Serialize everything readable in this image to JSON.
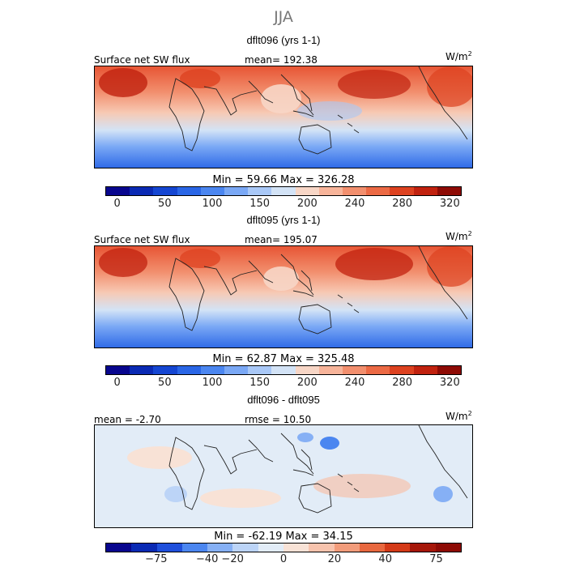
{
  "title": "JJA",
  "panels": [
    {
      "id": "dflt096",
      "title": "dflt096 (yrs 1-1)",
      "left_label": "Surface net SW flux",
      "center_label": "mean= 192.38",
      "units": "W/m",
      "units_sup": "2",
      "minmax": "Min =  59.66 Max = 326.28"
    },
    {
      "id": "dflt095",
      "title": "dflt095 (yrs 1-1)",
      "left_label": "Surface net SW flux",
      "center_label": "mean= 195.07",
      "units": "W/m",
      "units_sup": "2",
      "minmax": "Min =  62.87 Max = 325.48"
    },
    {
      "id": "diff",
      "title": "dflt096 - dflt095",
      "left_label": "mean =  -2.70",
      "center_label": "rmse =  10.50",
      "units": "W/m",
      "units_sup": "2",
      "minmax": "Min = -62.19 Max =  34.15"
    }
  ],
  "chart_data": [
    {
      "type": "heatmap",
      "title": "dflt096 (yrs 1-1)",
      "variable": "Surface net SW flux",
      "units": "W/m2",
      "mean": 192.38,
      "min": 59.66,
      "max": 326.28,
      "colorbar_ticks": [
        "0",
        "50",
        "100",
        "150",
        "200",
        "240",
        "280",
        "320"
      ]
    },
    {
      "type": "heatmap",
      "title": "dflt095 (yrs 1-1)",
      "variable": "Surface net SW flux",
      "units": "W/m2",
      "mean": 195.07,
      "min": 62.87,
      "max": 325.48,
      "colorbar_ticks": [
        "0",
        "50",
        "100",
        "150",
        "200",
        "240",
        "280",
        "320"
      ]
    },
    {
      "type": "heatmap",
      "title": "dflt096 - dflt095",
      "units": "W/m2",
      "mean": -2.7,
      "rmse": 10.5,
      "min": -62.19,
      "max": 34.15,
      "colorbar_ticks": [
        "-75",
        "-40",
        "-20",
        "0",
        "20",
        "40",
        "75"
      ]
    }
  ],
  "colors": {
    "abs_scale": [
      "#08068e",
      "#0a2ab4",
      "#1546d2",
      "#2a66e6",
      "#4b86f0",
      "#7aa8f5",
      "#a9c8f7",
      "#d3e3f6",
      "#f7d6c6",
      "#f7b49a",
      "#f28f6e",
      "#ec6a45",
      "#dd4220",
      "#c1220f",
      "#8e0b05"
    ],
    "diff_scale": [
      "#08068e",
      "#0a2ab4",
      "#1f4fdb",
      "#4b86f0",
      "#86b0f5",
      "#bcd4f7",
      "#e2ecf7",
      "#f8e2d6",
      "#f7c3ad",
      "#f29c7b",
      "#e8683f",
      "#d43a18",
      "#a6170a",
      "#8e0b05"
    ]
  }
}
